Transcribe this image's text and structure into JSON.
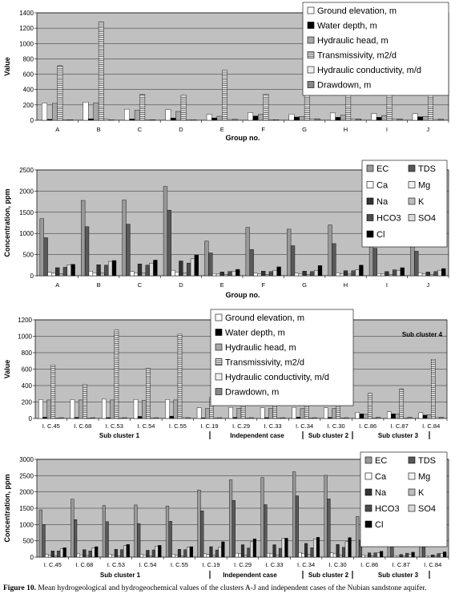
{
  "caption": {
    "label": "Figure 10.",
    "text": " Mean hydrogeological and hydrogeochemical values of the clusters A-J and independent cases of the Nubian sandstone aquifer."
  },
  "chart_data": [
    {
      "type": "bar",
      "title": "",
      "ylabel": "Value",
      "xlabel": "Group no.",
      "ylim": [
        0,
        1400
      ],
      "yticks": [
        0,
        200,
        400,
        600,
        800,
        1000,
        1200,
        1400
      ],
      "legend_position": "top-right",
      "categories": [
        "A",
        "B",
        "C",
        "D",
        "E",
        "F",
        "G",
        "H",
        "I",
        "J"
      ],
      "series": [
        {
          "name": "Ground elevation, m",
          "values": [
            225,
            238,
            145,
            140,
            78,
            100,
            80,
            95,
            88,
            85
          ]
        },
        {
          "name": "Water depth, m",
          "values": [
            12,
            18,
            16,
            28,
            30,
            55,
            42,
            38,
            38,
            45
          ]
        },
        {
          "name": "Hydraulic head, m",
          "values": [
            220,
            228,
            130,
            115,
            52,
            75,
            48,
            65,
            62,
            50
          ]
        },
        {
          "name": "Transmissivity, m2/d",
          "values": [
            710,
            1280,
            335,
            325,
            650,
            340,
            640,
            400,
            465,
            425
          ]
        },
        {
          "name": "Hydraulic conductivity, m/d",
          "values": [
            8,
            12,
            8,
            8,
            10,
            8,
            15,
            12,
            12,
            10
          ]
        },
        {
          "name": "Drawdown, m",
          "values": [
            8,
            5,
            8,
            5,
            12,
            8,
            20,
            18,
            18,
            15
          ]
        }
      ]
    },
    {
      "type": "bar",
      "title": "",
      "ylabel": "Concentration, ppm",
      "xlabel": "Group no.",
      "ylim": [
        0,
        2500
      ],
      "yticks": [
        0,
        500,
        1000,
        1500,
        2000,
        2500
      ],
      "legend_position": "top-right",
      "categories": [
        "A",
        "B",
        "C",
        "D",
        "E",
        "F",
        "G",
        "H",
        "I",
        "J"
      ],
      "series": [
        {
          "name": "EC",
          "values": [
            1350,
            1780,
            1790,
            2110,
            820,
            1140,
            1100,
            1200,
            870,
            900
          ]
        },
        {
          "name": "TDS",
          "values": [
            900,
            1160,
            1220,
            1550,
            540,
            620,
            710,
            760,
            650,
            580
          ]
        },
        {
          "name": "Ca",
          "values": [
            80,
            110,
            100,
            130,
            50,
            60,
            60,
            70,
            50,
            70
          ]
        },
        {
          "name": "Mg",
          "values": [
            60,
            70,
            70,
            90,
            40,
            40,
            40,
            50,
            40,
            40
          ]
        },
        {
          "name": "Na",
          "values": [
            190,
            260,
            280,
            350,
            90,
            110,
            110,
            120,
            100,
            90
          ]
        },
        {
          "name": "K",
          "values": [
            50,
            60,
            60,
            70,
            30,
            30,
            30,
            40,
            30,
            30
          ]
        },
        {
          "name": "HCO3",
          "values": [
            200,
            250,
            250,
            300,
            100,
            100,
            100,
            120,
            140,
            100
          ]
        },
        {
          "name": "SO4",
          "values": [
            260,
            340,
            300,
            400,
            110,
            130,
            130,
            140,
            130,
            130
          ]
        },
        {
          "name": "Cl",
          "values": [
            270,
            360,
            370,
            490,
            150,
            210,
            240,
            250,
            190,
            170
          ]
        }
      ]
    },
    {
      "type": "bar",
      "title": "",
      "ylabel": "Value",
      "ylim": [
        0,
        1200
      ],
      "yticks": [
        0,
        200,
        400,
        600,
        800,
        1000,
        1200
      ],
      "legend_position": "top-center",
      "annotation": "Sub cluster 4",
      "categories": [
        "I. C.45",
        "I. C.68",
        "I. C.53",
        "I. C.54",
        "I. C.55",
        "I. C.19",
        "I. C.29",
        "I. C.33",
        "I. C.34",
        "I. C.30",
        "I. C.86",
        "I. C.87",
        "I. C.84"
      ],
      "groups": [
        {
          "label": "Sub cluster 1"
        },
        {
          "label": "Independent case"
        },
        {
          "label": "Sub cluster 2"
        },
        {
          "label": "Sub cluster 3"
        }
      ],
      "series": [
        {
          "name": "Ground elevation, m",
          "values": [
            230,
            230,
            235,
            232,
            232,
            130,
            135,
            130,
            135,
            130,
            75,
            80,
            70
          ]
        },
        {
          "name": "Water depth, m",
          "values": [
            15,
            12,
            10,
            25,
            28,
            8,
            12,
            10,
            15,
            12,
            55,
            55,
            40
          ]
        },
        {
          "name": "Hydraulic head, m",
          "values": [
            225,
            225,
            225,
            220,
            225,
            122,
            125,
            122,
            120,
            120,
            50,
            55,
            45
          ]
        },
        {
          "name": "Transmissivity, m2/d",
          "values": [
            650,
            415,
            1075,
            610,
            1025,
            255,
            325,
            325,
            255,
            285,
            305,
            360,
            720
          ]
        },
        {
          "name": "Hydraulic conductivity, m/d",
          "values": [
            5,
            5,
            8,
            8,
            10,
            5,
            5,
            5,
            5,
            5,
            8,
            8,
            10
          ]
        },
        {
          "name": "Drawdown, m",
          "values": [
            10,
            10,
            10,
            10,
            10,
            10,
            10,
            10,
            10,
            10,
            15,
            15,
            15
          ]
        }
      ]
    },
    {
      "type": "bar",
      "title": "",
      "ylabel": "Concentration, ppm",
      "ylim": [
        0,
        3000
      ],
      "yticks": [
        0,
        500,
        1000,
        1500,
        2000,
        2500,
        3000
      ],
      "legend_position": "top-right",
      "annotation": "Sub cluster 4",
      "categories": [
        "I. C.45",
        "I. C.68",
        "I. C.53",
        "I. C.54",
        "I. C.55",
        "I. C.19",
        "I. C.29",
        "I. C.33",
        "I. C.34",
        "I. C.30",
        "I. C.86",
        "I. C.87",
        "I. C.84"
      ],
      "groups": [
        {
          "label": "Sub cluster 1"
        },
        {
          "label": "Independent case"
        },
        {
          "label": "Sub cluster 2"
        },
        {
          "label": "Sub cluster 3"
        }
      ],
      "series": [
        {
          "name": "EC",
          "values": [
            1450,
            1780,
            1580,
            1600,
            1570,
            2060,
            2370,
            2440,
            2620,
            2510,
            1250,
            850,
            570
          ]
        },
        {
          "name": "TDS",
          "values": [
            1000,
            1150,
            1090,
            1030,
            1100,
            1420,
            1740,
            1610,
            1880,
            1790,
            520,
            490,
            640
          ]
        },
        {
          "name": "Ca",
          "values": [
            80,
            100,
            90,
            90,
            90,
            100,
            120,
            120,
            140,
            130,
            60,
            40,
            40
          ]
        },
        {
          "name": "Mg",
          "values": [
            60,
            70,
            60,
            60,
            60,
            80,
            100,
            100,
            110,
            100,
            40,
            40,
            40
          ]
        },
        {
          "name": "Na",
          "values": [
            190,
            230,
            240,
            210,
            240,
            320,
            380,
            380,
            420,
            390,
            130,
            80,
            70
          ]
        },
        {
          "name": "K",
          "values": [
            40,
            50,
            40,
            40,
            40,
            60,
            70,
            70,
            80,
            70,
            30,
            30,
            30
          ]
        },
        {
          "name": "HCO3",
          "values": [
            190,
            190,
            230,
            220,
            230,
            220,
            280,
            270,
            290,
            300,
            130,
            120,
            110
          ]
        },
        {
          "name": "SO4",
          "values": [
            260,
            280,
            350,
            340,
            310,
            310,
            470,
            570,
            560,
            470,
            130,
            90,
            110
          ]
        },
        {
          "name": "Cl",
          "values": [
            290,
            320,
            390,
            360,
            320,
            470,
            560,
            580,
            610,
            600,
            180,
            150,
            160
          ]
        }
      ]
    }
  ],
  "styles": {
    "plot_bg": "#c0c0c0",
    "hydro_fills": [
      "#ffffff",
      "#000000",
      "#a8a8a8",
      "hatch-horizontal",
      "#f0f0f0",
      "#888888"
    ],
    "chem_fills": [
      "#999999",
      "#595959",
      "#ffffff",
      "#f2f2f2",
      "#333333",
      "#bdbdbd",
      "#4d4d4d",
      "#d9d9d9",
      "#000000"
    ]
  }
}
